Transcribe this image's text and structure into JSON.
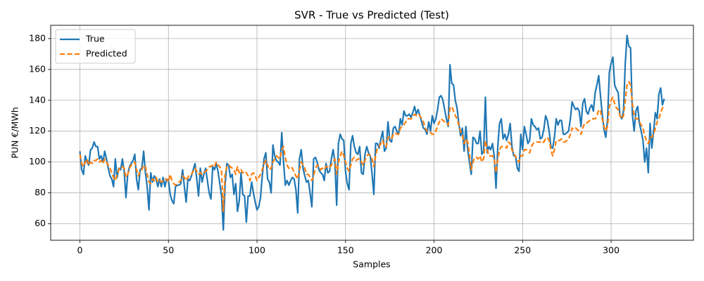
{
  "chart_data": {
    "type": "line",
    "title": "SVR - True vs Predicted (Test)",
    "x_label": "Samples",
    "y_label": "PUN €/MWh",
    "xlim": [
      -16.5,
      346.5
    ],
    "ylim": [
      49.3,
      188.6
    ],
    "xticks": [
      0,
      50,
      100,
      150,
      200,
      250,
      300
    ],
    "yticks": [
      60,
      80,
      100,
      120,
      140,
      160,
      180
    ],
    "grid": true,
    "legend": "upper left",
    "x": [
      0,
      1,
      2,
      3,
      4,
      5,
      6,
      7,
      8,
      9,
      10,
      11,
      12,
      13,
      14,
      15,
      16,
      17,
      18,
      19,
      20,
      21,
      22,
      23,
      24,
      25,
      26,
      27,
      28,
      29,
      30,
      31,
      32,
      33,
      34,
      35,
      36,
      37,
      38,
      39,
      40,
      41,
      42,
      43,
      44,
      45,
      46,
      47,
      48,
      49,
      50,
      51,
      52,
      53,
      54,
      55,
      56,
      57,
      58,
      59,
      60,
      61,
      62,
      63,
      64,
      65,
      66,
      67,
      68,
      69,
      70,
      71,
      72,
      73,
      74,
      75,
      76,
      77,
      78,
      79,
      80,
      81,
      82,
      83,
      84,
      85,
      86,
      87,
      88,
      89,
      90,
      91,
      92,
      93,
      94,
      95,
      96,
      97,
      98,
      99,
      100,
      101,
      102,
      103,
      104,
      105,
      106,
      107,
      108,
      109,
      110,
      111,
      112,
      113,
      114,
      115,
      116,
      117,
      118,
      119,
      120,
      121,
      122,
      123,
      124,
      125,
      126,
      127,
      128,
      129,
      130,
      131,
      132,
      133,
      134,
      135,
      136,
      137,
      138,
      139,
      140,
      141,
      142,
      143,
      144,
      145,
      146,
      147,
      148,
      149,
      150,
      151,
      152,
      153,
      154,
      155,
      156,
      157,
      158,
      159,
      160,
      161,
      162,
      163,
      164,
      165,
      166,
      167,
      168,
      169,
      170,
      171,
      172,
      173,
      174,
      175,
      176,
      177,
      178,
      179,
      180,
      181,
      182,
      183,
      184,
      185,
      186,
      187,
      188,
      189,
      190,
      191,
      192,
      193,
      194,
      195,
      196,
      197,
      198,
      199,
      200,
      201,
      202,
      203,
      204,
      205,
      206,
      207,
      208,
      209,
      210,
      211,
      212,
      213,
      214,
      215,
      216,
      217,
      218,
      219,
      220,
      221,
      222,
      223,
      224,
      225,
      226,
      227,
      228,
      229,
      230,
      231,
      232,
      233,
      234,
      235,
      236,
      237,
      238,
      239,
      240,
      241,
      242,
      243,
      244,
      245,
      246,
      247,
      248,
      249,
      250,
      251,
      252,
      253,
      254,
      255,
      256,
      257,
      258,
      259,
      260,
      261,
      262,
      263,
      264,
      265,
      266,
      267,
      268,
      269,
      270,
      271,
      272,
      273,
      274,
      275,
      276,
      277,
      278,
      279,
      280,
      281,
      282,
      283,
      284,
      285,
      286,
      287,
      288,
      289,
      290,
      291,
      292,
      293,
      294,
      295,
      296,
      297,
      298,
      299,
      300,
      301,
      302,
      303,
      304,
      305,
      306,
      307,
      308,
      309,
      310,
      311,
      312,
      313,
      314,
      315,
      316,
      317,
      318,
      319,
      320,
      321,
      322,
      323,
      324,
      325,
      326,
      327,
      328,
      329,
      330
    ],
    "series": [
      {
        "name": "True",
        "color": "#1f77b4",
        "dash": false,
        "values": [
          107,
          95,
          92,
          104,
          100,
          98,
          108,
          109,
          113,
          110,
          110,
          102,
          104,
          100,
          107,
          102,
          96,
          91,
          89,
          84,
          102,
          90,
          96,
          95,
          102,
          94,
          77,
          92,
          97,
          99,
          101,
          105,
          89,
          82,
          95,
          96,
          107,
          93,
          84,
          69,
          93,
          87,
          91,
          89,
          84,
          89,
          84,
          90,
          84,
          89,
          88,
          79,
          75,
          73,
          84,
          85,
          85,
          86,
          95,
          84,
          74,
          89,
          88,
          91,
          95,
          99,
          89,
          78,
          96,
          87,
          92,
          96,
          88,
          80,
          76,
          97,
          95,
          99,
          94,
          86,
          78,
          56,
          85,
          99,
          98,
          90,
          92,
          79,
          86,
          68,
          75,
          93,
          79,
          78,
          61,
          78,
          78,
          87,
          80,
          74,
          69,
          71,
          77,
          91,
          102,
          106,
          89,
          87,
          80,
          111,
          104,
          101,
          100,
          98,
          119,
          100,
          85,
          88,
          85,
          88,
          90,
          89,
          82,
          67,
          102,
          108,
          96,
          91,
          87,
          88,
          80,
          71,
          102,
          103,
          100,
          95,
          93,
          92,
          88,
          99,
          93,
          94,
          102,
          108,
          100,
          72,
          112,
          118,
          115,
          114,
          94,
          86,
          82,
          112,
          117,
          110,
          106,
          105,
          110,
          93,
          92,
          105,
          110,
          106,
          104,
          92,
          79,
          112,
          112,
          109,
          115,
          120,
          107,
          109,
          126,
          114,
          113,
          122,
          123,
          120,
          118,
          128,
          124,
          133,
          130,
          130,
          131,
          129,
          132,
          136,
          131,
          134,
          130,
          126,
          122,
          121,
          118,
          126,
          120,
          130,
          125,
          128,
          134,
          142,
          143,
          140,
          134,
          128,
          123,
          163,
          151,
          150,
          140,
          135,
          125,
          117,
          122,
          107,
          123,
          108,
          100,
          92,
          116,
          115,
          112,
          112,
          120,
          105,
          107,
          142,
          106,
          110,
          108,
          112,
          104,
          83,
          110,
          125,
          128,
          115,
          118,
          114,
          118,
          125,
          110,
          104,
          104,
          96,
          94,
          118,
          108,
          123,
          118,
          112,
          114,
          128,
          124,
          123,
          121,
          122,
          115,
          116,
          121,
          130,
          127,
          120,
          110,
          109,
          116,
          128,
          124,
          127,
          127,
          118,
          118,
          119,
          120,
          128,
          139,
          136,
          134,
          135,
          133,
          123,
          138,
          141,
          133,
          131,
          135,
          137,
          133,
          145,
          150,
          156,
          143,
          131,
          121,
          116,
          128,
          158,
          164,
          168,
          150,
          147,
          145,
          130,
          128,
          133,
          164,
          182,
          175,
          174,
          131,
          120,
          133,
          136,
          125,
          120,
          114,
          100,
          109,
          93,
          125,
          109,
          120,
          132,
          128,
          144,
          148,
          137,
          141
        ]
      },
      {
        "name": "Predicted",
        "color": "#ff7f0e",
        "dash": true,
        "values": [
          105,
          99,
          97,
          100,
          102,
          98,
          100,
          99,
          101,
          101,
          102,
          100,
          101,
          99,
          102,
          100,
          98,
          96,
          93,
          90,
          88,
          92,
          95,
          97,
          97,
          96,
          90,
          92,
          96,
          98,
          99,
          100,
          95,
          91,
          94,
          95,
          98,
          97,
          92,
          87,
          86,
          89,
          88,
          90,
          87,
          88,
          87,
          88,
          89,
          89,
          87,
          92,
          88,
          86,
          85,
          86,
          87,
          88,
          91,
          90,
          88,
          90,
          92,
          92,
          94,
          96,
          94,
          92,
          93,
          92,
          93,
          94,
          95,
          97,
          97,
          98,
          97,
          100,
          98,
          97,
          94,
          68,
          92,
          97,
          98,
          97,
          96,
          95,
          92,
          97,
          93,
          95,
          93,
          94,
          93,
          91,
          88,
          92,
          93,
          91,
          88,
          90,
          92,
          95,
          99,
          101,
          98,
          95,
          96,
          100,
          102,
          104,
          103,
          102,
          108,
          110,
          103,
          98,
          96,
          97,
          96,
          93,
          91,
          89,
          95,
          100,
          98,
          96,
          92,
          92,
          90,
          88,
          91,
          96,
          98,
          97,
          95,
          96,
          95,
          97,
          97,
          96,
          98,
          100,
          102,
          92,
          100,
          104,
          107,
          104,
          100,
          96,
          94,
          98,
          102,
          103,
          101,
          102,
          102,
          100,
          98,
          101,
          104,
          105,
          104,
          102,
          97,
          104,
          109,
          110,
          112,
          114,
          110,
          110,
          116,
          116,
          115,
          118,
          119,
          118,
          118,
          122,
          123,
          124,
          126,
          128,
          128,
          128,
          129,
          131,
          130,
          131,
          130,
          128,
          126,
          122,
          120,
          120,
          119,
          118,
          118,
          120,
          123,
          126,
          128,
          127,
          126,
          125,
          124,
          135,
          136,
          133,
          130,
          128,
          124,
          120,
          117,
          112,
          115,
          113,
          105,
          95,
          100,
          103,
          103,
          102,
          104,
          100,
          102,
          114,
          108,
          104,
          104,
          104,
          102,
          93,
          102,
          108,
          110,
          110,
          110,
          109,
          113,
          112,
          108,
          105,
          104,
          101,
          100,
          104,
          104,
          108,
          108,
          107,
          106,
          110,
          112,
          113,
          113,
          113,
          113,
          112,
          113,
          115,
          116,
          114,
          108,
          104,
          108,
          114,
          114,
          114,
          115,
          113,
          113,
          114,
          115,
          118,
          122,
          121,
          122,
          121,
          120,
          118,
          122,
          125,
          125,
          126,
          127,
          128,
          128,
          128,
          130,
          134,
          133,
          128,
          123,
          120,
          123,
          136,
          140,
          142,
          138,
          135,
          134,
          130,
          128,
          130,
          140,
          150,
          152,
          150,
          138,
          130,
          128,
          128,
          126,
          124,
          122,
          117,
          114,
          112,
          116,
          116,
          118,
          122,
          126,
          128,
          132,
          135,
          136
        ]
      }
    ]
  }
}
